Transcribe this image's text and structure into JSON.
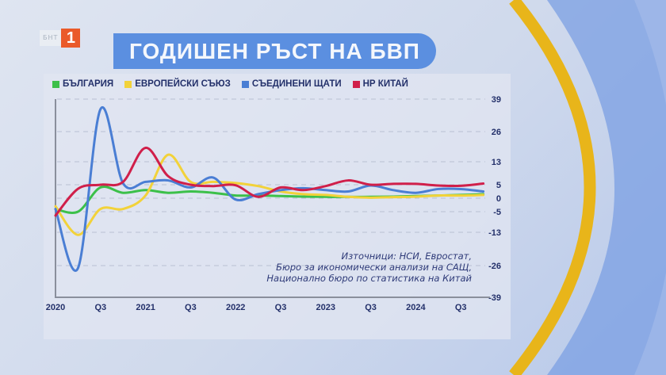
{
  "logo": {
    "channel_text": "БНТ",
    "channel_number": "1"
  },
  "title": "ГОДИШЕН РЪСТ НА БВП",
  "colors": {
    "bulgaria": "#3cc04a",
    "eu": "#f2d23a",
    "usa": "#4a7ed4",
    "china": "#d01f4a",
    "title_bg": "#5b8fe0",
    "text": "#23306a",
    "accent_yellow": "#e8b51a"
  },
  "chart_data": {
    "type": "line",
    "title": "ГОДИШЕН РЪСТ НА БВП",
    "x_tick_labels": [
      "2020",
      "Q3",
      "2021",
      "Q3",
      "2022",
      "Q3",
      "2023",
      "Q3",
      "2024",
      "Q3"
    ],
    "x": [
      "2020 Q1",
      "2020 Q2",
      "2020 Q3",
      "2020 Q4",
      "2021 Q1",
      "2021 Q2",
      "2021 Q3",
      "2021 Q4",
      "2022 Q1",
      "2022 Q2",
      "2022 Q3",
      "2022 Q4",
      "2023 Q1",
      "2023 Q2",
      "2023 Q3",
      "2023 Q4",
      "2024 Q1",
      "2024 Q2",
      "2024 Q3",
      "2024 Q4"
    ],
    "y_ticks": [
      39,
      26,
      13,
      5,
      0,
      -5,
      -13,
      -26,
      -39
    ],
    "ylim": [
      -39,
      39
    ],
    "y_axis_side": "right",
    "grid": "dashed horizontal",
    "legend_position": "top-left",
    "series": [
      {
        "name": "БЪЛГАРИЯ",
        "color": "#3cc04a",
        "values": [
          -4,
          -5,
          4,
          2,
          3,
          2,
          2.5,
          2,
          1,
          1,
          0.8,
          0.6,
          0.5,
          0.5,
          0.5,
          0.6,
          0.8,
          1,
          1.2,
          1.5
        ]
      },
      {
        "name": "ЕВРОПЕЙСКИ СЪЮЗ",
        "color": "#f2d23a",
        "values": [
          -3,
          -14,
          -4,
          -4,
          1,
          16,
          6,
          6,
          5.6,
          4.5,
          2.5,
          1.5,
          1.2,
          0.5,
          0.2,
          0.4,
          0.6,
          1,
          1,
          1.2
        ]
      },
      {
        "name": "СЪЕДИНЕНИ ЩАТИ",
        "color": "#4a7ed4",
        "values": [
          -4,
          -27,
          35,
          5.5,
          6,
          6.5,
          4,
          7.5,
          -0.5,
          1.5,
          3,
          3.7,
          3,
          2.5,
          4.7,
          3,
          2,
          3.4,
          3.4,
          2.5
        ]
      },
      {
        "name": "НР КИТАЙ",
        "color": "#d01f4a",
        "values": [
          -6.5,
          3.5,
          5,
          6,
          19,
          8,
          5,
          4.5,
          4.8,
          0.5,
          4,
          3,
          4.5,
          6.5,
          5,
          5.3,
          5.3,
          4.7,
          4.6,
          5.4
        ]
      }
    ]
  },
  "source": {
    "lines": [
      "Източници: НСИ, Евростат,",
      "Бюро за икономически анализи на САЩ,",
      "Национално бюро по статистика на Китай"
    ]
  }
}
